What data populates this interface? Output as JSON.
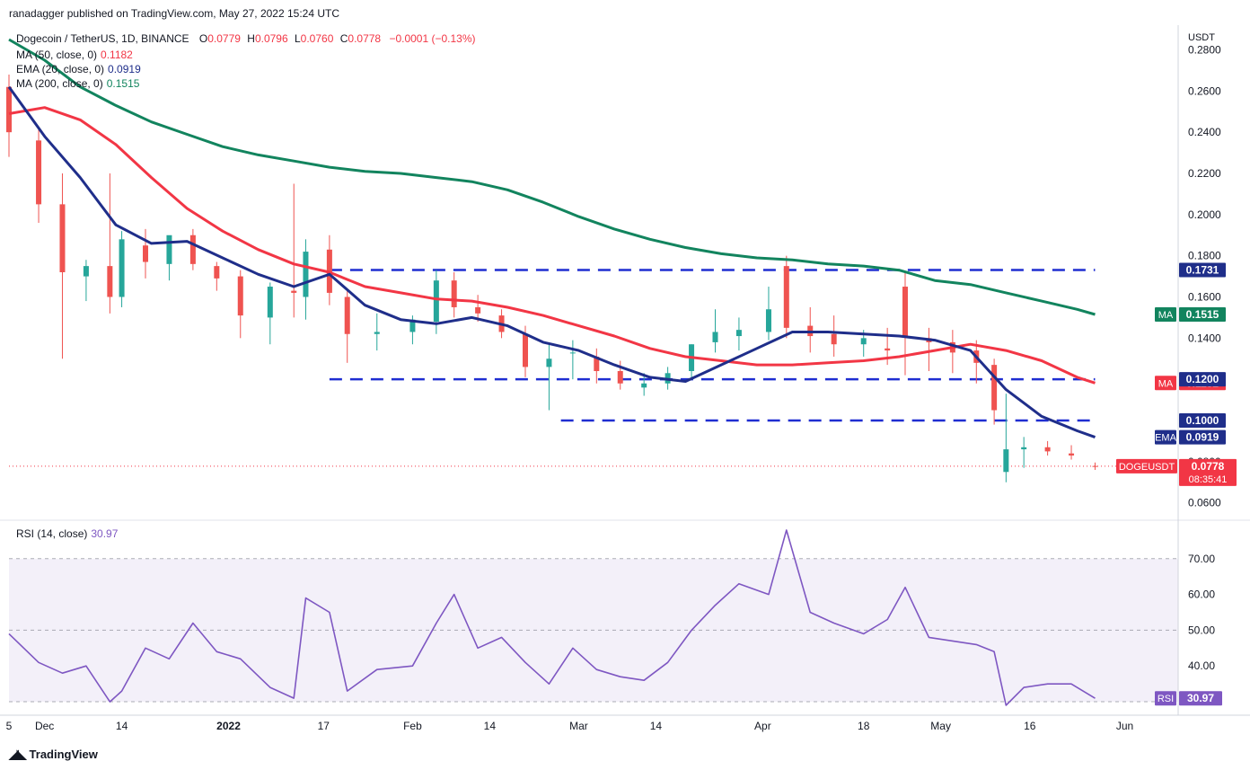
{
  "header": {
    "published": "ranadagger published on TradingView.com, May 27, 2022 15:24 UTC"
  },
  "symbol": {
    "title": "Dogecoin / TetherUS, 1D, BINANCE",
    "open_label": "O",
    "open": "0.0779",
    "high_label": "H",
    "high": "0.0796",
    "low_label": "L",
    "low": "0.0760",
    "close_label": "C",
    "close": "0.0778",
    "change": "−0.0001 (−0.13%)"
  },
  "indicators": [
    {
      "label": "MA (50, close, 0)",
      "value": "0.1182",
      "color": "#f23645"
    },
    {
      "label": "EMA (20, close, 0)",
      "value": "0.0919",
      "color": "#1f2e8a"
    },
    {
      "label": "MA (200, close, 0)",
      "value": "0.1515",
      "color": "#12845e"
    }
  ],
  "rsi_legend": {
    "label": "RSI (14, close)",
    "value": "30.97",
    "color": "#7e57c2"
  },
  "price_axis": {
    "currency": "USDT",
    "ticks": [
      "0.2800",
      "0.2600",
      "0.2400",
      "0.2200",
      "0.2000",
      "0.1800",
      "0.1600",
      "0.1400",
      "0.1200",
      "0.1000",
      "0.0800",
      "0.0600"
    ],
    "tick_values": [
      0.28,
      0.26,
      0.24,
      0.22,
      0.2,
      0.18,
      0.16,
      0.14,
      0.12,
      0.1,
      0.08,
      0.06
    ]
  },
  "rsi_axis": {
    "ticks": [
      "70.00",
      "60.00",
      "50.00",
      "40.00"
    ],
    "tick_values": [
      70,
      60,
      50,
      40
    ]
  },
  "time_axis": {
    "labels": [
      "5",
      "Dec",
      "14",
      "2022",
      "17",
      "Feb",
      "14",
      "Mar",
      "14",
      "Apr",
      "18",
      "May",
      "16",
      "Jun"
    ],
    "bold": [
      false,
      false,
      false,
      true,
      false,
      false,
      false,
      false,
      false,
      false,
      false,
      false,
      false,
      false
    ]
  },
  "price_labels": [
    {
      "name": "MA",
      "value": "0.1515",
      "y": 0.1515,
      "color": "#12845e"
    },
    {
      "name": "MA",
      "value": "0.1182",
      "y": 0.1182,
      "color": "#f23645"
    },
    {
      "name": "EMA",
      "value": "0.0919",
      "y": 0.0919,
      "color": "#1f2e8a"
    },
    {
      "name": "",
      "value": "0.1731",
      "y": 0.1731,
      "color": "#1f2e8a"
    },
    {
      "name": "",
      "value": "0.1200",
      "y": 0.12,
      "color": "#1f2e8a"
    },
    {
      "name": "",
      "value": "0.1000",
      "y": 0.1,
      "color": "#1f2e8a"
    }
  ],
  "last_price": {
    "name": "DOGEUSDT",
    "value": "0.0778",
    "countdown": "08:35:41",
    "color": "#f23645"
  },
  "rsi_label": {
    "name": "RSI",
    "value": "30.97",
    "color": "#7e57c2"
  },
  "brand": {
    "name": "TradingView"
  },
  "chart_data": {
    "type": "candlestick",
    "x_range": [
      "2021-11-25",
      "2022-06-10"
    ],
    "y_range": [
      0.052,
      0.292
    ],
    "support_resistance": [
      {
        "value": 0.1731,
        "from": "2022-01-18",
        "to": "2022-05-27"
      },
      {
        "value": 0.12,
        "from": "2022-01-18",
        "to": "2022-05-27"
      },
      {
        "value": 0.1,
        "from": "2022-02-26",
        "to": "2022-05-27"
      }
    ],
    "series": [
      {
        "name": "MA (50, close, 0)",
        "color": "#f23645",
        "x": [
          "2021-11-25",
          "2021-12-01",
          "2021-12-07",
          "2021-12-13",
          "2021-12-19",
          "2021-12-25",
          "2021-12-31",
          "2022-01-06",
          "2022-01-12",
          "2022-01-18",
          "2022-01-24",
          "2022-01-30",
          "2022-02-05",
          "2022-02-11",
          "2022-02-17",
          "2022-02-23",
          "2022-03-01",
          "2022-03-07",
          "2022-03-13",
          "2022-03-19",
          "2022-03-25",
          "2022-03-31",
          "2022-04-06",
          "2022-04-12",
          "2022-04-18",
          "2022-04-24",
          "2022-04-30",
          "2022-05-06",
          "2022-05-12",
          "2022-05-18",
          "2022-05-24",
          "2022-05-27"
        ],
        "y": [
          0.249,
          0.252,
          0.246,
          0.234,
          0.218,
          0.203,
          0.192,
          0.183,
          0.176,
          0.172,
          0.165,
          0.162,
          0.159,
          0.158,
          0.155,
          0.151,
          0.146,
          0.141,
          0.135,
          0.131,
          0.129,
          0.127,
          0.127,
          0.128,
          0.129,
          0.131,
          0.134,
          0.137,
          0.134,
          0.129,
          0.121,
          0.1182
        ]
      },
      {
        "name": "EMA (20, close, 0)",
        "color": "#1f2e8a",
        "x": [
          "2021-11-25",
          "2021-12-01",
          "2021-12-07",
          "2021-12-13",
          "2021-12-19",
          "2021-12-25",
          "2021-12-31",
          "2022-01-06",
          "2022-01-12",
          "2022-01-18",
          "2022-01-24",
          "2022-01-30",
          "2022-02-05",
          "2022-02-11",
          "2022-02-17",
          "2022-02-23",
          "2022-03-01",
          "2022-03-07",
          "2022-03-13",
          "2022-03-19",
          "2022-03-25",
          "2022-03-31",
          "2022-04-06",
          "2022-04-12",
          "2022-04-18",
          "2022-04-24",
          "2022-04-30",
          "2022-05-06",
          "2022-05-12",
          "2022-05-18",
          "2022-05-24",
          "2022-05-27"
        ],
        "y": [
          0.262,
          0.238,
          0.218,
          0.195,
          0.186,
          0.187,
          0.179,
          0.171,
          0.165,
          0.171,
          0.156,
          0.149,
          0.147,
          0.15,
          0.146,
          0.138,
          0.134,
          0.127,
          0.121,
          0.119,
          0.127,
          0.135,
          0.143,
          0.143,
          0.142,
          0.141,
          0.139,
          0.134,
          0.115,
          0.102,
          0.095,
          0.0919
        ]
      },
      {
        "name": "MA (200, close, 0)",
        "color": "#12845e",
        "x": [
          "2021-11-25",
          "2021-12-01",
          "2021-12-07",
          "2021-12-13",
          "2021-12-19",
          "2021-12-25",
          "2021-12-31",
          "2022-01-06",
          "2022-01-12",
          "2022-01-18",
          "2022-01-24",
          "2022-01-30",
          "2022-02-05",
          "2022-02-11",
          "2022-02-17",
          "2022-02-23",
          "2022-03-01",
          "2022-03-07",
          "2022-03-13",
          "2022-03-19",
          "2022-03-25",
          "2022-03-31",
          "2022-04-06",
          "2022-04-12",
          "2022-04-18",
          "2022-04-24",
          "2022-04-30",
          "2022-05-06",
          "2022-05-12",
          "2022-05-18",
          "2022-05-24",
          "2022-05-27"
        ],
        "y": [
          0.285,
          0.275,
          0.262,
          0.253,
          0.245,
          0.239,
          0.233,
          0.229,
          0.226,
          0.223,
          0.221,
          0.22,
          0.218,
          0.216,
          0.212,
          0.206,
          0.199,
          0.193,
          0.188,
          0.184,
          0.181,
          0.179,
          0.178,
          0.176,
          0.175,
          0.173,
          0.168,
          0.166,
          0.162,
          0.158,
          0.154,
          0.1515
        ]
      }
    ],
    "candles": {
      "x": [
        "2021-11-25",
        "2021-11-30",
        "2021-12-04",
        "2021-12-08",
        "2021-12-12",
        "2021-12-14",
        "2021-12-18",
        "2021-12-22",
        "2021-12-26",
        "2021-12-30",
        "2022-01-03",
        "2022-01-08",
        "2022-01-12",
        "2022-01-14",
        "2022-01-18",
        "2022-01-21",
        "2022-01-26",
        "2022-02-01",
        "2022-02-05",
        "2022-02-08",
        "2022-02-12",
        "2022-02-16",
        "2022-02-20",
        "2022-02-24",
        "2022-02-28",
        "2022-03-04",
        "2022-03-08",
        "2022-03-12",
        "2022-03-16",
        "2022-03-20",
        "2022-03-24",
        "2022-03-28",
        "2022-04-02",
        "2022-04-05",
        "2022-04-09",
        "2022-04-13",
        "2022-04-18",
        "2022-04-22",
        "2022-04-25",
        "2022-04-29",
        "2022-05-03",
        "2022-05-07",
        "2022-05-10",
        "2022-05-12",
        "2022-05-15",
        "2022-05-19",
        "2022-05-23",
        "2022-05-27"
      ],
      "open": [
        0.262,
        0.236,
        0.205,
        0.17,
        0.175,
        0.16,
        0.185,
        0.176,
        0.19,
        0.175,
        0.17,
        0.15,
        0.163,
        0.16,
        0.183,
        0.16,
        0.142,
        0.143,
        0.148,
        0.168,
        0.155,
        0.151,
        0.142,
        0.126,
        0.133,
        0.131,
        0.124,
        0.116,
        0.118,
        0.124,
        0.138,
        0.141,
        0.143,
        0.175,
        0.146,
        0.142,
        0.137,
        0.135,
        0.165,
        0.14,
        0.138,
        0.134,
        0.127,
        0.075,
        0.086,
        0.087,
        0.084,
        0.0779
      ],
      "high": [
        0.268,
        0.242,
        0.22,
        0.178,
        0.22,
        0.192,
        0.193,
        0.18,
        0.193,
        0.177,
        0.173,
        0.167,
        0.215,
        0.188,
        0.19,
        0.164,
        0.152,
        0.151,
        0.173,
        0.172,
        0.161,
        0.154,
        0.146,
        0.137,
        0.139,
        0.135,
        0.129,
        0.123,
        0.126,
        0.137,
        0.154,
        0.15,
        0.165,
        0.18,
        0.155,
        0.151,
        0.144,
        0.145,
        0.172,
        0.145,
        0.144,
        0.139,
        0.13,
        0.113,
        0.092,
        0.09,
        0.088,
        0.0796
      ],
      "low": [
        0.228,
        0.196,
        0.13,
        0.158,
        0.152,
        0.155,
        0.169,
        0.168,
        0.173,
        0.163,
        0.14,
        0.137,
        0.15,
        0.149,
        0.156,
        0.128,
        0.134,
        0.137,
        0.142,
        0.15,
        0.148,
        0.14,
        0.121,
        0.105,
        0.12,
        0.118,
        0.115,
        0.112,
        0.115,
        0.12,
        0.133,
        0.134,
        0.139,
        0.14,
        0.133,
        0.131,
        0.131,
        0.127,
        0.122,
        0.124,
        0.123,
        0.118,
        0.098,
        0.07,
        0.077,
        0.083,
        0.081,
        0.076
      ],
      "close": [
        0.24,
        0.205,
        0.172,
        0.175,
        0.16,
        0.188,
        0.177,
        0.19,
        0.176,
        0.169,
        0.151,
        0.165,
        0.162,
        0.182,
        0.162,
        0.142,
        0.143,
        0.149,
        0.168,
        0.155,
        0.152,
        0.143,
        0.126,
        0.13,
        0.133,
        0.124,
        0.118,
        0.118,
        0.123,
        0.137,
        0.143,
        0.144,
        0.154,
        0.145,
        0.141,
        0.137,
        0.14,
        0.134,
        0.141,
        0.138,
        0.133,
        0.128,
        0.105,
        0.086,
        0.087,
        0.085,
        0.083,
        0.0778
      ]
    },
    "rsi": {
      "name": "RSI (14, close)",
      "color": "#7e57c2",
      "range": [
        27,
        80
      ],
      "bands": [
        70,
        50,
        30
      ],
      "x": [
        "2021-11-25",
        "2021-11-30",
        "2021-12-04",
        "2021-12-08",
        "2021-12-12",
        "2021-12-14",
        "2021-12-18",
        "2021-12-22",
        "2021-12-26",
        "2021-12-30",
        "2022-01-03",
        "2022-01-08",
        "2022-01-12",
        "2022-01-14",
        "2022-01-18",
        "2022-01-21",
        "2022-01-26",
        "2022-02-01",
        "2022-02-05",
        "2022-02-08",
        "2022-02-12",
        "2022-02-16",
        "2022-02-20",
        "2022-02-24",
        "2022-02-28",
        "2022-03-04",
        "2022-03-08",
        "2022-03-12",
        "2022-03-16",
        "2022-03-20",
        "2022-03-24",
        "2022-03-28",
        "2022-04-02",
        "2022-04-05",
        "2022-04-09",
        "2022-04-13",
        "2022-04-18",
        "2022-04-22",
        "2022-04-25",
        "2022-04-29",
        "2022-05-03",
        "2022-05-07",
        "2022-05-10",
        "2022-05-12",
        "2022-05-15",
        "2022-05-19",
        "2022-05-23",
        "2022-05-27"
      ],
      "y": [
        49,
        41,
        38,
        40,
        30,
        33,
        45,
        42,
        52,
        44,
        42,
        34,
        31,
        59,
        55,
        33,
        39,
        40,
        52,
        60,
        45,
        48,
        41,
        35,
        45,
        39,
        37,
        36,
        41,
        50,
        57,
        63,
        60,
        78,
        55,
        52,
        49,
        53,
        62,
        48,
        47,
        46,
        44,
        29,
        34,
        35,
        35,
        30.97
      ]
    }
  }
}
